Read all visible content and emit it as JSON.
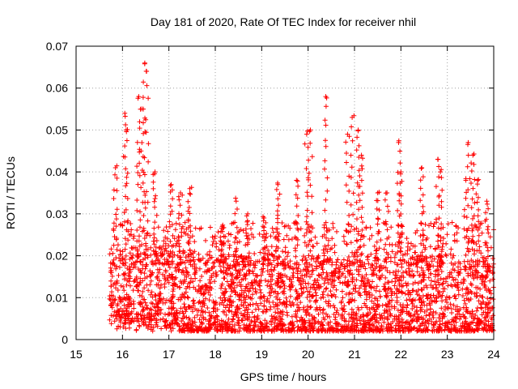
{
  "chart_data": {
    "type": "scatter",
    "title": "Day 181 of 2020, Rate Of TEC Index for receiver nhil",
    "xlabel": "GPS time / hours",
    "ylabel": "ROTI / TECUs",
    "xlim": [
      15,
      24
    ],
    "ylim": [
      0,
      0.07
    ],
    "x_ticks": [
      15,
      16,
      17,
      18,
      19,
      20,
      21,
      22,
      23,
      24
    ],
    "x_tick_labels": [
      "15",
      "16",
      "17",
      "18",
      "19",
      "20",
      "21",
      "22",
      "23",
      "24"
    ],
    "y_ticks": [
      0,
      0.01,
      0.02,
      0.03,
      0.04,
      0.05,
      0.06,
      0.07
    ],
    "y_tick_labels": [
      "0",
      "0.01",
      "0.02",
      "0.03",
      "0.04",
      "0.05",
      "0.06",
      "0.07"
    ],
    "grid": true,
    "marker": "+",
    "color": "#ff0000",
    "series": [
      {
        "name": "ROTI",
        "x_range": [
          15.72,
          24.0
        ],
        "baseline_range": [
          0.002,
          0.02
        ],
        "peaks": [
          {
            "x": 15.85,
            "y": 0.041
          },
          {
            "x": 16.05,
            "y": 0.054
          },
          {
            "x": 16.08,
            "y": 0.05
          },
          {
            "x": 16.35,
            "y": 0.058
          },
          {
            "x": 16.48,
            "y": 0.066
          },
          {
            "x": 16.52,
            "y": 0.064
          },
          {
            "x": 16.45,
            "y": 0.055
          },
          {
            "x": 16.4,
            "y": 0.045
          },
          {
            "x": 16.7,
            "y": 0.04
          },
          {
            "x": 17.05,
            "y": 0.037
          },
          {
            "x": 17.25,
            "y": 0.035
          },
          {
            "x": 17.45,
            "y": 0.036
          },
          {
            "x": 18.15,
            "y": 0.027
          },
          {
            "x": 18.45,
            "y": 0.033
          },
          {
            "x": 18.7,
            "y": 0.03
          },
          {
            "x": 19.05,
            "y": 0.029
          },
          {
            "x": 19.35,
            "y": 0.037
          },
          {
            "x": 19.75,
            "y": 0.038
          },
          {
            "x": 19.97,
            "y": 0.049
          },
          {
            "x": 20.05,
            "y": 0.05
          },
          {
            "x": 20.38,
            "y": 0.058
          },
          {
            "x": 20.85,
            "y": 0.049
          },
          {
            "x": 20.95,
            "y": 0.053
          },
          {
            "x": 21.08,
            "y": 0.05
          },
          {
            "x": 21.15,
            "y": 0.044
          },
          {
            "x": 21.5,
            "y": 0.035
          },
          {
            "x": 21.7,
            "y": 0.035
          },
          {
            "x": 21.95,
            "y": 0.047
          },
          {
            "x": 22.0,
            "y": 0.04
          },
          {
            "x": 22.45,
            "y": 0.041
          },
          {
            "x": 22.8,
            "y": 0.043
          },
          {
            "x": 22.85,
            "y": 0.04
          },
          {
            "x": 23.4,
            "y": 0.038
          },
          {
            "x": 23.45,
            "y": 0.047
          },
          {
            "x": 23.55,
            "y": 0.044
          },
          {
            "x": 23.65,
            "y": 0.038
          },
          {
            "x": 23.85,
            "y": 0.033
          }
        ]
      }
    ]
  }
}
